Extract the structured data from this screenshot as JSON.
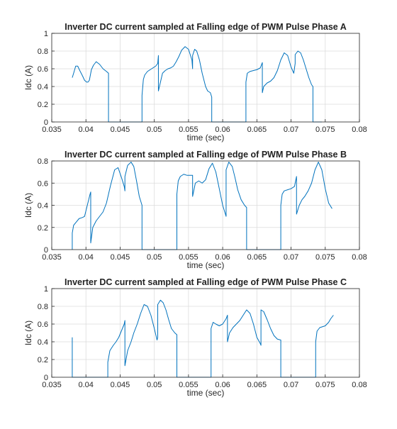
{
  "colors": {
    "line": "#0072bd",
    "grid": "#dcdcdc",
    "axis": "#262626",
    "background": "#ffffff"
  },
  "chart_data": [
    {
      "type": "line",
      "title": "Inverter DC current sampled at Falling edge of PWM Pulse Phase A",
      "xlabel": "time (sec)",
      "ylabel": "Idc (A)",
      "xlim": [
        0.035,
        0.08
      ],
      "ylim": [
        0,
        1
      ],
      "grid": true,
      "xticks": [
        0.035,
        0.04,
        0.045,
        0.05,
        0.055,
        0.06,
        0.065,
        0.07,
        0.075,
        0.08
      ],
      "xtick_labels": [
        "0.035",
        "0.04",
        "0.045",
        "0.05",
        "0.055",
        "0.06",
        "0.065",
        "0.07",
        "0.075",
        "0.08"
      ],
      "yticks": [
        0,
        0.2,
        0.4,
        0.6,
        0.8,
        1
      ],
      "ytick_labels": [
        "0",
        "0.2",
        "0.4",
        "0.6",
        "0.8",
        "1"
      ],
      "series": [
        {
          "x": [
            0.038,
            0.0382,
            0.0385,
            0.0388,
            0.0391,
            0.0395,
            0.0398,
            0.0401,
            0.0403,
            0.0405,
            0.0408,
            0.0411,
            0.0415,
            0.042,
            0.0425,
            0.043,
            0.0433,
            0.0433,
            0.047,
            0.0482,
            0.0482,
            0.0484,
            0.0486,
            0.049,
            0.0494,
            0.0498,
            0.0502,
            0.0505,
            0.0506,
            0.0506,
            0.0509,
            0.0512,
            0.0516,
            0.052,
            0.0524,
            0.0528,
            0.0532,
            0.0536,
            0.054,
            0.0545,
            0.055,
            0.0555,
            0.0556,
            0.0556,
            0.0559,
            0.0562,
            0.0566,
            0.057,
            0.0575,
            0.0578,
            0.0582,
            0.0584,
            0.0584,
            0.062,
            0.0634,
            0.0634,
            0.0636,
            0.064,
            0.0645,
            0.065,
            0.0655,
            0.0658,
            0.0658,
            0.066,
            0.0665,
            0.067,
            0.0675,
            0.068,
            0.0685,
            0.069,
            0.0695,
            0.07,
            0.0704,
            0.0706,
            0.0706,
            0.071,
            0.0714,
            0.0718,
            0.0722,
            0.0726,
            0.073,
            0.0732,
            0.0732,
            0.0745
          ],
          "values": [
            0.5,
            0.55,
            0.63,
            0.63,
            0.58,
            0.52,
            0.47,
            0.45,
            0.45,
            0.47,
            0.59,
            0.64,
            0.68,
            0.65,
            0.6,
            0.57,
            0.55,
            0,
            0,
            0,
            0.3,
            0.48,
            0.53,
            0.57,
            0.59,
            0.61,
            0.63,
            0.66,
            0.75,
            0.35,
            0.45,
            0.55,
            0.58,
            0.6,
            0.61,
            0.63,
            0.68,
            0.74,
            0.81,
            0.85,
            0.82,
            0.7,
            0.6,
            0.75,
            0.82,
            0.8,
            0.7,
            0.55,
            0.4,
            0.35,
            0.33,
            0.28,
            0,
            0,
            0,
            0.45,
            0.55,
            0.57,
            0.58,
            0.59,
            0.61,
            0.67,
            0.33,
            0.4,
            0.44,
            0.46,
            0.5,
            0.58,
            0.7,
            0.78,
            0.75,
            0.62,
            0.55,
            0.66,
            0.76,
            0.8,
            0.78,
            0.7,
            0.6,
            0.5,
            0.42,
            0.4,
            0,
            0
          ]
        }
      ]
    },
    {
      "type": "line",
      "title": "Inverter DC current sampled at Falling edge of PWM Pulse Phase B",
      "xlabel": "time (sec)",
      "ylabel": "Idc (A)",
      "xlim": [
        0.035,
        0.08
      ],
      "ylim": [
        0,
        0.8
      ],
      "grid": true,
      "xticks": [
        0.035,
        0.04,
        0.045,
        0.05,
        0.055,
        0.06,
        0.065,
        0.07,
        0.075,
        0.08
      ],
      "xtick_labels": [
        "0.035",
        "0.04",
        "0.045",
        "0.05",
        "0.055",
        "0.06",
        "0.065",
        "0.07",
        "0.075",
        "0.08"
      ],
      "yticks": [
        0,
        0.2,
        0.4,
        0.6,
        0.8
      ],
      "ytick_labels": [
        "0",
        "0.2",
        "0.4",
        "0.6",
        "0.8"
      ],
      "series": [
        {
          "x": [
            0.038,
            0.038,
            0.0382,
            0.0386,
            0.039,
            0.0395,
            0.0398,
            0.0402,
            0.0406,
            0.0407,
            0.0407,
            0.041,
            0.0415,
            0.042,
            0.0425,
            0.043,
            0.0436,
            0.0442,
            0.0447,
            0.0452,
            0.0456,
            0.0457,
            0.0457,
            0.0461,
            0.0466,
            0.047,
            0.0474,
            0.0478,
            0.0482,
            0.0482,
            0.0533,
            0.0533,
            0.0535,
            0.0538,
            0.0543,
            0.0548,
            0.0553,
            0.0556,
            0.0556,
            0.056,
            0.0565,
            0.057,
            0.0575,
            0.058,
            0.0585,
            0.059,
            0.0595,
            0.06,
            0.0604,
            0.0605,
            0.0605,
            0.0609,
            0.0614,
            0.0618,
            0.0622,
            0.0627,
            0.0632,
            0.0635,
            0.0635,
            0.0685,
            0.0685,
            0.0687,
            0.069,
            0.0695,
            0.07,
            0.0705,
            0.0708,
            0.0708,
            0.0712,
            0.0716,
            0.072,
            0.0725,
            0.073,
            0.0735,
            0.074,
            0.0745,
            0.075,
            0.0755,
            0.076
          ],
          "values": [
            0,
            0.15,
            0.22,
            0.25,
            0.28,
            0.29,
            0.3,
            0.4,
            0.5,
            0.52,
            0.06,
            0.2,
            0.26,
            0.3,
            0.34,
            0.42,
            0.58,
            0.72,
            0.74,
            0.65,
            0.57,
            0.53,
            0.66,
            0.76,
            0.79,
            0.75,
            0.62,
            0.48,
            0.4,
            0,
            0,
            0.5,
            0.62,
            0.66,
            0.68,
            0.67,
            0.67,
            0.67,
            0.48,
            0.6,
            0.62,
            0.6,
            0.63,
            0.73,
            0.78,
            0.7,
            0.55,
            0.4,
            0.32,
            0.3,
            0.72,
            0.79,
            0.75,
            0.65,
            0.54,
            0.45,
            0.4,
            0.38,
            0,
            0,
            0.4,
            0.5,
            0.53,
            0.54,
            0.55,
            0.57,
            0.66,
            0.32,
            0.4,
            0.45,
            0.48,
            0.53,
            0.6,
            0.72,
            0.79,
            0.72,
            0.55,
            0.42,
            0.37
          ]
        }
      ]
    },
    {
      "type": "line",
      "title": "Inverter DC current sampled at Falling edge of PWM Pulse Phase C",
      "xlabel": "time (sec)",
      "ylabel": "Idc (A)",
      "xlim": [
        0.035,
        0.08
      ],
      "ylim": [
        0,
        1
      ],
      "grid": true,
      "xticks": [
        0.035,
        0.04,
        0.045,
        0.05,
        0.055,
        0.06,
        0.065,
        0.07,
        0.075,
        0.08
      ],
      "xtick_labels": [
        "0.035",
        "0.04",
        "0.045",
        "0.05",
        "0.055",
        "0.06",
        "0.065",
        "0.07",
        "0.075",
        "0.08"
      ],
      "yticks": [
        0,
        0.2,
        0.4,
        0.6,
        0.8,
        1
      ],
      "ytick_labels": [
        "0",
        "0.2",
        "0.4",
        "0.6",
        "0.8",
        "1"
      ],
      "series": [
        {
          "x": [
            0.038,
            0.038,
            0.0432,
            0.0432,
            0.0435,
            0.044,
            0.0444,
            0.0448,
            0.0456,
            0.0457,
            0.0457,
            0.0461,
            0.0466,
            0.047,
            0.0475,
            0.048,
            0.0485,
            0.049,
            0.0495,
            0.05,
            0.0504,
            0.0505,
            0.0505,
            0.0509,
            0.0513,
            0.0517,
            0.0521,
            0.0525,
            0.053,
            0.0533,
            0.0533,
            0.0583,
            0.0583,
            0.0586,
            0.059,
            0.0595,
            0.06,
            0.0605,
            0.0607,
            0.0607,
            0.061,
            0.0615,
            0.062,
            0.0625,
            0.063,
            0.0635,
            0.064,
            0.0645,
            0.065,
            0.0655,
            0.0656,
            0.0656,
            0.066,
            0.0665,
            0.067,
            0.0675,
            0.068,
            0.0685,
            0.0685,
            0.0736,
            0.0736,
            0.0738,
            0.0742,
            0.0746,
            0.075,
            0.0755,
            0.0758,
            0.0762
          ],
          "values": [
            0.45,
            0,
            0,
            0.17,
            0.3,
            0.36,
            0.4,
            0.45,
            0.6,
            0.64,
            0.13,
            0.3,
            0.4,
            0.5,
            0.6,
            0.72,
            0.82,
            0.8,
            0.7,
            0.55,
            0.42,
            0.45,
            0.82,
            0.87,
            0.84,
            0.76,
            0.65,
            0.55,
            0.5,
            0.48,
            0,
            0,
            0.55,
            0.62,
            0.6,
            0.58,
            0.6,
            0.66,
            0.7,
            0.4,
            0.5,
            0.56,
            0.6,
            0.64,
            0.7,
            0.76,
            0.72,
            0.6,
            0.45,
            0.38,
            0.36,
            0.76,
            0.74,
            0.65,
            0.55,
            0.47,
            0.43,
            0.42,
            0,
            0,
            0.4,
            0.52,
            0.56,
            0.57,
            0.58,
            0.62,
            0.66,
            0.7
          ]
        }
      ]
    }
  ]
}
